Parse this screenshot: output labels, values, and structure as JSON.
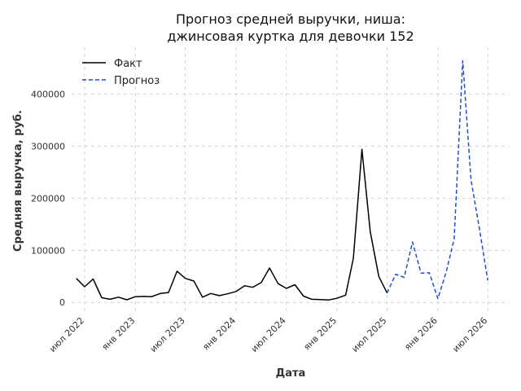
{
  "chart_data": {
    "type": "line",
    "title_lines": [
      "Прогноз средней выручки, ниша:",
      "джинсовая куртка для девочки 152"
    ],
    "xlabel": "Дата",
    "ylabel": "Средняя выручка, руб.",
    "ylim": [
      -20000,
      490000
    ],
    "yticks": [
      0,
      100000,
      200000,
      300000,
      400000
    ],
    "yticklabels": [
      "0",
      "100000",
      "200000",
      "300000",
      "400000"
    ],
    "x_range": [
      "2022-05-15",
      "2026-09-15"
    ],
    "xticks": [
      "2022-07-01",
      "2023-01-01",
      "2023-07-01",
      "2024-01-01",
      "2024-07-01",
      "2025-01-01",
      "2025-07-01",
      "2026-01-01",
      "2026-07-01"
    ],
    "xticklabels": [
      "июл 2022",
      "янв 2023",
      "июл 2023",
      "янв 2024",
      "июл 2024",
      "янв 2025",
      "июл 2025",
      "янв 2026",
      "июл 2026"
    ],
    "grid": true,
    "legend_position": "top-left",
    "series": [
      {
        "name": "Факт",
        "color": "#000000",
        "style": "solid",
        "x": [
          "2022-06-01",
          "2022-07-01",
          "2022-08-01",
          "2022-09-01",
          "2022-10-01",
          "2022-11-01",
          "2022-12-01",
          "2023-01-01",
          "2023-02-01",
          "2023-03-01",
          "2023-04-01",
          "2023-05-01",
          "2023-06-01",
          "2023-07-01",
          "2023-08-01",
          "2023-09-01",
          "2023-10-01",
          "2023-11-01",
          "2023-12-01",
          "2024-01-01",
          "2024-02-01",
          "2024-03-01",
          "2024-04-01",
          "2024-05-01",
          "2024-06-01",
          "2024-07-01",
          "2024-08-01",
          "2024-09-01",
          "2024-10-01",
          "2024-11-01",
          "2024-12-01",
          "2025-01-01",
          "2025-02-01",
          "2025-03-01",
          "2025-04-01",
          "2025-05-01",
          "2025-06-01",
          "2025-07-01"
        ],
        "y": [
          46000,
          30000,
          45000,
          9000,
          6000,
          10000,
          5000,
          11000,
          11500,
          11000,
          17000,
          19000,
          60000,
          46000,
          41000,
          10000,
          17000,
          13000,
          16500,
          21000,
          32000,
          29000,
          38000,
          66000,
          36000,
          27000,
          34000,
          12000,
          6000,
          5500,
          4500,
          8000,
          14000,
          85000,
          294000,
          136000,
          50000,
          18000
        ]
      },
      {
        "name": "Прогноз",
        "color": "#1f4fd1",
        "style": "dashed",
        "x": [
          "2025-07-01",
          "2025-08-01",
          "2025-09-01",
          "2025-10-01",
          "2025-11-01",
          "2025-12-01",
          "2026-01-01",
          "2026-02-01",
          "2026-03-01",
          "2026-04-01",
          "2026-05-01",
          "2026-06-01",
          "2026-07-01",
          "2026-08-01"
        ],
        "y": [
          18000,
          54000,
          48000,
          116000,
          56000,
          57000,
          7000,
          60000,
          122000,
          464000,
          235000,
          140000,
          42000,
          null
        ]
      }
    ]
  }
}
